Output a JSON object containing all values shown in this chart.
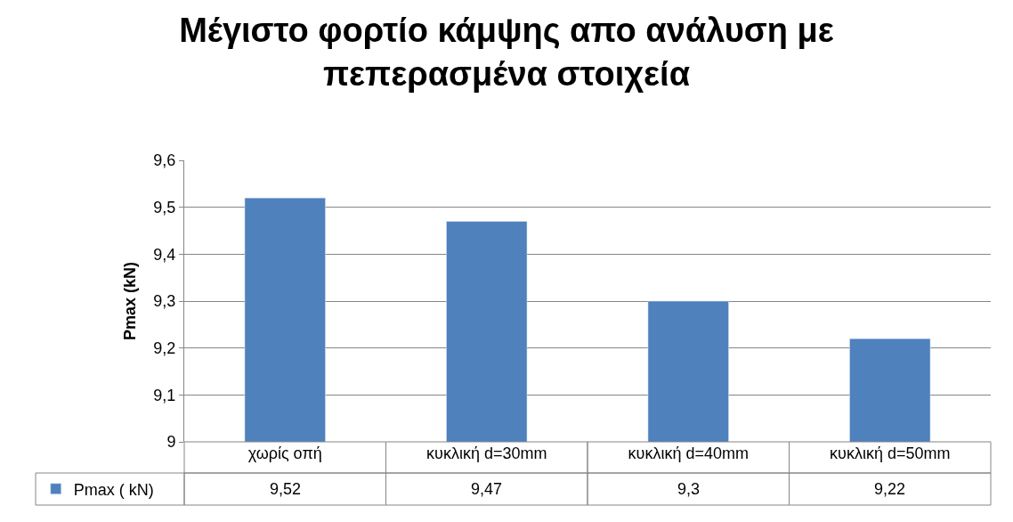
{
  "chart_data": {
    "type": "bar",
    "title": "Μέγιστο φορτίο κάμψης απο ανάλυση με\nπεπερασμένα στοιχεία",
    "ylabel": "Pmax (kN)",
    "categories": [
      "χωρίς οπή",
      "κυκλική d=30mm",
      "κυκλική d=40mm",
      "κυκλική d=50mm"
    ],
    "series": [
      {
        "name": "Pmax ( kN)",
        "color": "#4f81bd",
        "values": [
          9.52,
          9.47,
          9.3,
          9.22
        ],
        "value_labels": [
          "9,52",
          "9,47",
          "9,3",
          "9,22"
        ]
      }
    ],
    "ylim": [
      9,
      9.6
    ],
    "yticks": [
      {
        "value": 9,
        "label": "9"
      },
      {
        "value": 9.1,
        "label": "9,1"
      },
      {
        "value": 9.2,
        "label": "9,2"
      },
      {
        "value": 9.3,
        "label": "9,3"
      },
      {
        "value": 9.4,
        "label": "9,4"
      },
      {
        "value": 9.5,
        "label": "9,5"
      },
      {
        "value": 9.6,
        "label": "9,6"
      }
    ],
    "grid": "y",
    "legend": "bottom left"
  }
}
